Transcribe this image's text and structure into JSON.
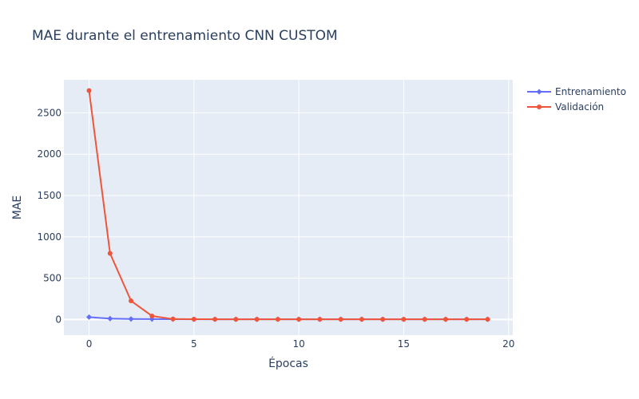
{
  "chart_data": {
    "type": "line",
    "title": "MAE durante el entrenamiento CNN CUSTOM",
    "xlabel": "Épocas",
    "ylabel": "MAE",
    "xlim": [
      -1.2,
      20.2
    ],
    "ylim": [
      -190,
      2900
    ],
    "xticks": [
      0,
      5,
      10,
      15,
      20
    ],
    "yticks": [
      0,
      500,
      1000,
      1500,
      2000,
      2500
    ],
    "xtick_labels": [
      "0",
      "5",
      "10",
      "15",
      "20"
    ],
    "ytick_labels": [
      "0",
      "500",
      "1000",
      "1500",
      "2000",
      "2500"
    ],
    "grid": true,
    "legend_position": "top-right outside",
    "x": [
      0,
      1,
      2,
      3,
      4,
      5,
      6,
      7,
      8,
      9,
      10,
      11,
      12,
      13,
      14,
      15,
      16,
      17,
      18,
      19
    ],
    "series": [
      {
        "name": "Entrenamiento",
        "color": "#636efa",
        "marker": "diamond",
        "values": [
          28,
          10,
          6,
          4,
          3,
          2.5,
          2,
          2,
          2,
          2,
          2,
          2,
          2,
          2,
          2,
          2,
          2,
          2,
          2,
          2
        ]
      },
      {
        "name": "Validación",
        "color": "#ef553b",
        "marker": "circle",
        "values": [
          2770,
          800,
          225,
          42,
          5,
          3,
          2.5,
          2,
          2,
          2,
          2,
          2,
          2,
          2,
          2,
          2,
          2,
          2,
          2,
          2
        ]
      }
    ]
  }
}
